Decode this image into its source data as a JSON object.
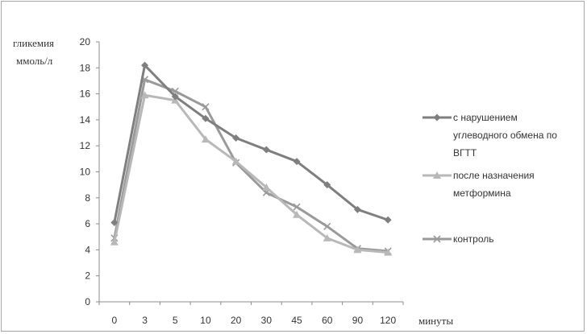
{
  "chart_data": {
    "type": "line",
    "title": "",
    "ylabel_lines": [
      "гликемия",
      "ммоль/л"
    ],
    "xlabel": "минуты",
    "categories": [
      "0",
      "3",
      "5",
      "10",
      "20",
      "30",
      "45",
      "60",
      "90",
      "120"
    ],
    "ylim": [
      0,
      20
    ],
    "yticks": [
      0,
      2,
      4,
      6,
      8,
      10,
      12,
      14,
      16,
      18,
      20
    ],
    "grid": false,
    "legend_position": "right",
    "series": [
      {
        "name_lines": [
          "с нарушением",
          "углеводного обмена по",
          "ВГТТ"
        ],
        "marker": "diamond",
        "color": "#7f7f7f",
        "values": [
          6.1,
          18.2,
          15.8,
          14.1,
          12.6,
          11.7,
          10.8,
          9.0,
          7.1,
          6.3
        ]
      },
      {
        "name_lines": [
          "после назначения",
          "метформина"
        ],
        "marker": "triangle",
        "color": "#b8b8b8",
        "values": [
          4.6,
          15.9,
          15.5,
          12.5,
          10.8,
          8.8,
          6.7,
          4.9,
          4.0,
          3.8
        ]
      },
      {
        "name_lines": [
          "контроль"
        ],
        "marker": "x",
        "color": "#9a9a9a",
        "values": [
          4.9,
          17.1,
          16.2,
          15.0,
          10.7,
          8.4,
          7.3,
          5.8,
          4.1,
          3.9
        ]
      }
    ]
  }
}
